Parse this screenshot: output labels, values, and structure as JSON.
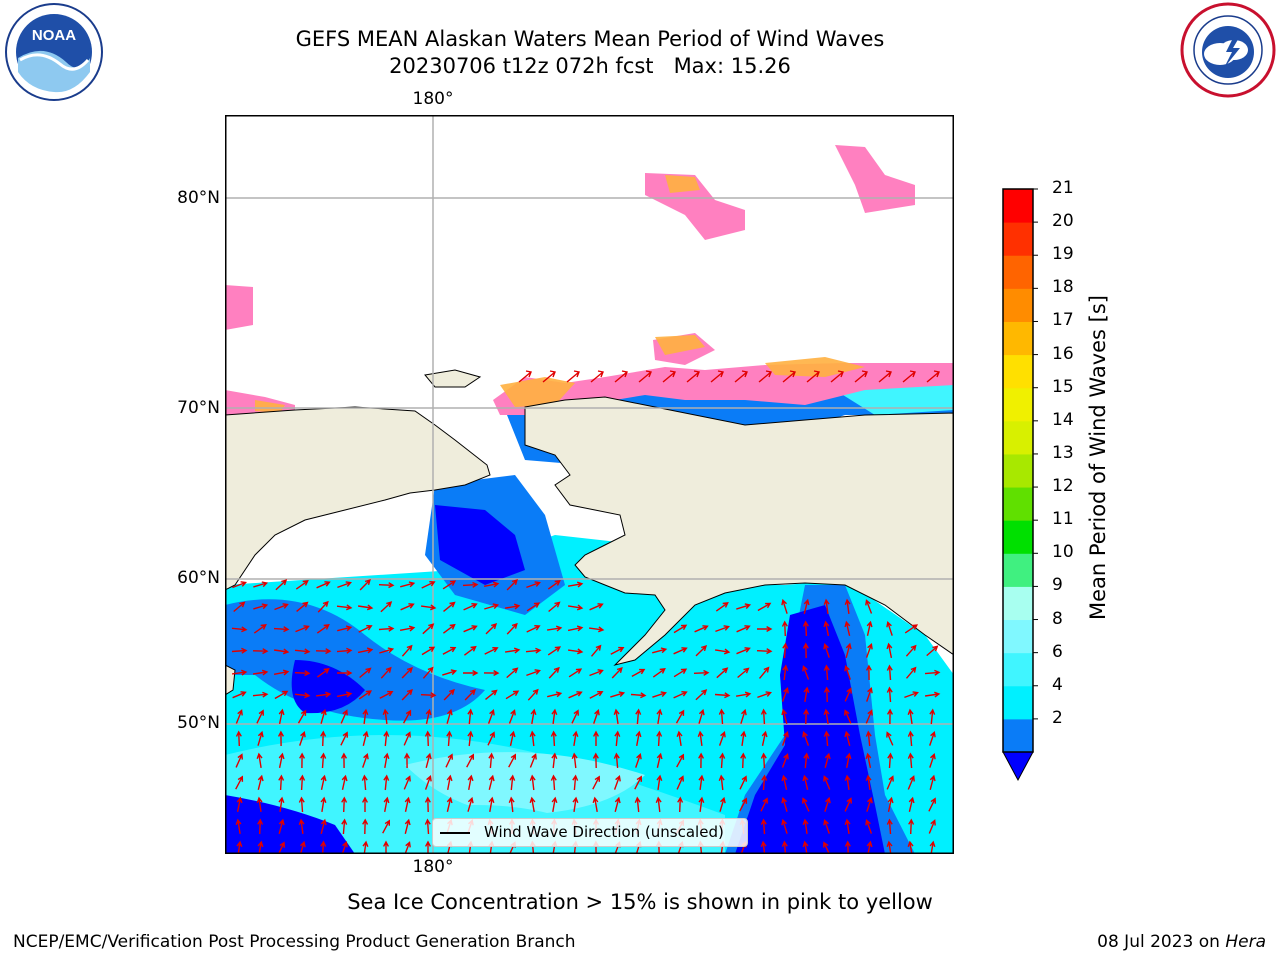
{
  "title": {
    "line1": "GEFS MEAN Alaskan Waters Mean Period of Wind Waves",
    "line2": "20230706 t12z 072h fcst   Max: 15.26"
  },
  "logos": {
    "noaa": {
      "text": "NOAA",
      "ring_text": "NATIONAL OCEANIC AND ATMOSPHERIC ADMINISTRATION · U.S. DEPARTMENT OF COMMERCE"
    },
    "nws": {
      "ring_text": "NATIONAL WEATHER SERVICE"
    }
  },
  "map": {
    "lon_label_top": "180°",
    "lon_label_bottom": "180°",
    "lat_labels": [
      "80°N",
      "70°N",
      "60°N",
      "50°N"
    ],
    "legend": "Wind Wave Direction (unscaled)",
    "land_color": "#efeddc",
    "arrow_color": "#e00000"
  },
  "colorbar": {
    "label": "Mean Period of Wind Waves [s]",
    "ticks": [
      "21",
      "20",
      "19",
      "18",
      "17",
      "16",
      "15",
      "14",
      "13",
      "12",
      "11",
      "10",
      "9",
      "8",
      "6",
      "4",
      "2"
    ],
    "colors_bottom_to_top": [
      "#0a7cf7",
      "#00f0ff",
      "#40f5ff",
      "#80f8ff",
      "#a8fff0",
      "#40f080",
      "#00e000",
      "#60e000",
      "#a8e800",
      "#d8f000",
      "#f0f000",
      "#ffe000",
      "#ffb800",
      "#ff8c00",
      "#ff6400",
      "#ff3000",
      "#ff0000"
    ],
    "extend_color": "#0000ff"
  },
  "note": "Sea Ice Concentration > 15% is shown in pink to yellow",
  "footer": {
    "left": "NCEP/EMC/Verification Post Processing Product Generation Branch",
    "date": "08 Jul 2023 on ",
    "host": "Hera"
  }
}
